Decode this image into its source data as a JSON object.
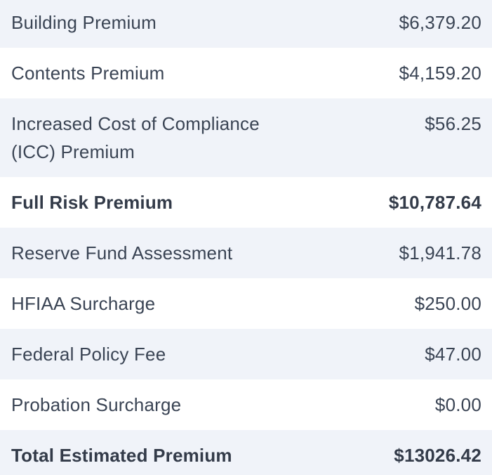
{
  "premium_breakdown": {
    "rows": [
      {
        "label": "Building Premium",
        "amount": "$6,379.20"
      },
      {
        "label": "Contents Premium",
        "amount": "$4,159.20"
      },
      {
        "label": "Increased Cost of Compliance (ICC) Premium",
        "amount": "$56.25"
      },
      {
        "label": "Full Risk Premium",
        "amount": "$10,787.64"
      },
      {
        "label": "Reserve Fund Assessment",
        "amount": "$1,941.78"
      },
      {
        "label": "HFIAA Surcharge",
        "amount": "$250.00"
      },
      {
        "label": "Federal Policy Fee",
        "amount": "$47.00"
      },
      {
        "label": "Probation Surcharge",
        "amount": "$0.00"
      },
      {
        "label": "Total Estimated Premium",
        "amount": "$13026.42"
      }
    ]
  },
  "colors": {
    "row_shaded": "#f0f3f9",
    "row_plain": "#ffffff",
    "text": "#3a4454",
    "text_bold": "#333b49"
  }
}
